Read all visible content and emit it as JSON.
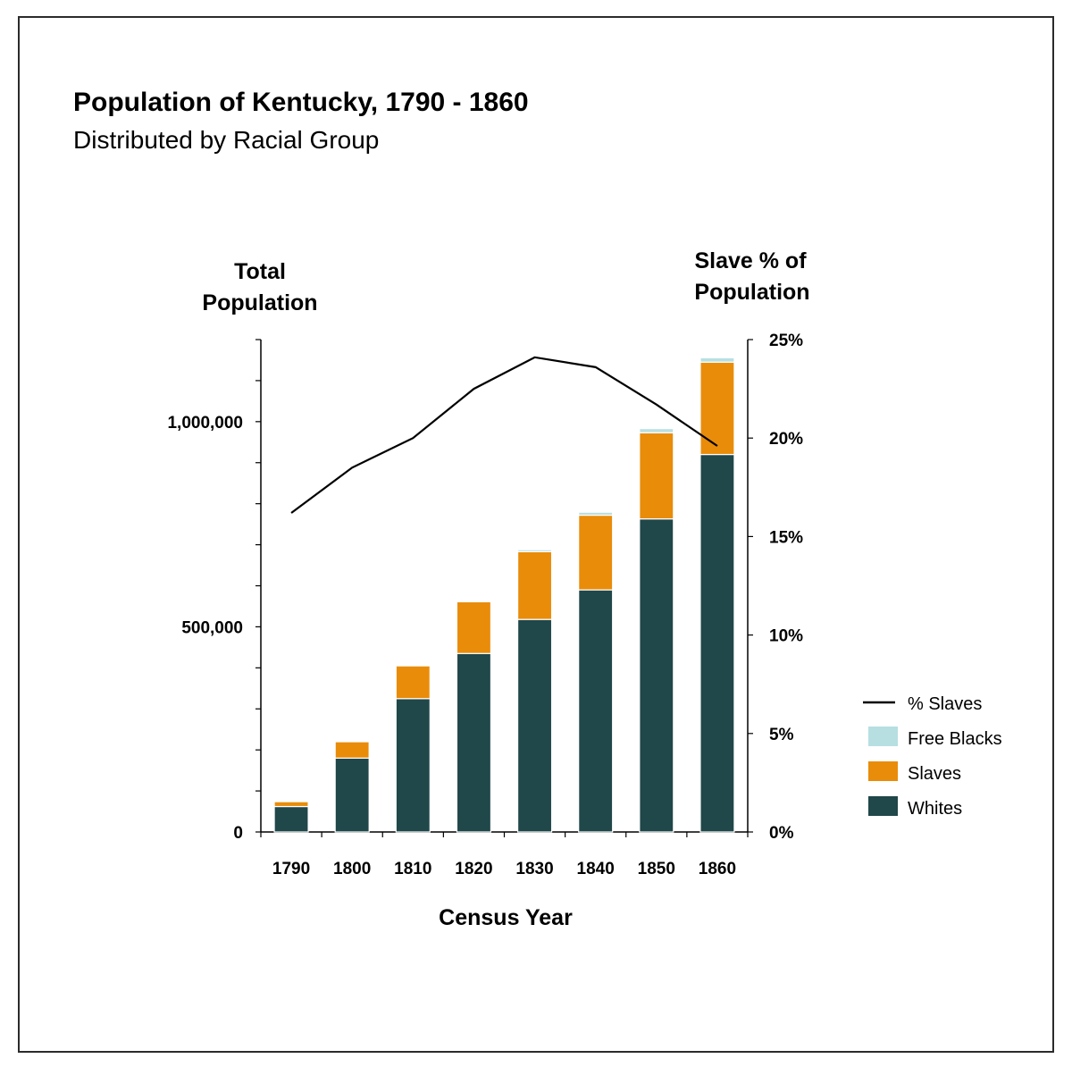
{
  "chart_data": {
    "type": "bar",
    "title": "Population of Kentucky, 1790 - 1860",
    "subtitle": "Distributed by Racial Group",
    "xlabel": "Census Year",
    "ylabel": [
      "Total",
      "Population"
    ],
    "y2label": [
      "Slave % of",
      "Population"
    ],
    "categories": [
      "1790",
      "1800",
      "1810",
      "1820",
      "1830",
      "1840",
      "1850",
      "1860"
    ],
    "ylim": [
      0,
      1200000
    ],
    "y2lim": [
      0,
      25
    ],
    "yticks": [
      {
        "value": 0,
        "label": "0"
      },
      {
        "value": 500000,
        "label": "500,000"
      },
      {
        "value": 1000000,
        "label": "1,000,000"
      }
    ],
    "y2ticks": [
      {
        "value": 0,
        "label": "0%"
      },
      {
        "value": 5,
        "label": "5%"
      },
      {
        "value": 10,
        "label": "10%"
      },
      {
        "value": 15,
        "label": "15%"
      },
      {
        "value": 20,
        "label": "20%"
      },
      {
        "value": 25,
        "label": "25%"
      }
    ],
    "series": [
      {
        "name": "Whites",
        "kind": "bar",
        "axis": "left",
        "color": "#20474a",
        "values": [
          62000,
          180000,
          325000,
          435000,
          518000,
          590000,
          763000,
          920000
        ]
      },
      {
        "name": "Slaves",
        "kind": "bar",
        "axis": "left",
        "color": "#e98c0a",
        "values": [
          12000,
          40000,
          80000,
          126000,
          165000,
          182000,
          210000,
          225000
        ]
      },
      {
        "name": "Free Blacks",
        "kind": "bar",
        "axis": "left",
        "color": "#b7dfe2",
        "values": [
          100,
          700,
          1700,
          2800,
          4900,
          7300,
          10000,
          10700
        ]
      },
      {
        "name": "% Slaves",
        "kind": "line",
        "axis": "right",
        "color": "#000000",
        "values": [
          16.2,
          18.5,
          20.0,
          22.5,
          24.1,
          23.6,
          21.7,
          19.6
        ]
      }
    ],
    "legend": {
      "position": "right",
      "items": [
        "% Slaves",
        "Free Blacks",
        "Slaves",
        "Whites"
      ]
    },
    "grid": false
  }
}
